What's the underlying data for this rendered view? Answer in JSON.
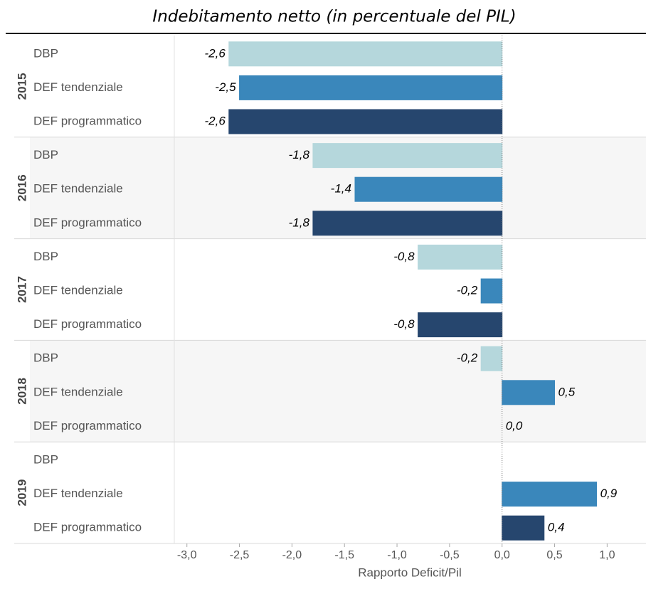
{
  "chart_data": {
    "type": "bar",
    "orientation": "horizontal",
    "title": "Indebitamento netto (in percentuale del PIL)",
    "xlabel": "Rapporto Deficit/Pil",
    "groups": [
      "2015",
      "2016",
      "2017",
      "2018",
      "2019"
    ],
    "series": [
      {
        "name": "DBP",
        "color": "#b5d7dc",
        "values": [
          -2.6,
          -1.8,
          -0.8,
          -0.2,
          null
        ],
        "value_labels": [
          "-2,6",
          "-1,8",
          "-0,8",
          "-0,2",
          null
        ]
      },
      {
        "name": "DEF tendenziale",
        "color": "#3a87bb",
        "values": [
          -2.5,
          -1.4,
          -0.2,
          0.5,
          0.9
        ],
        "value_labels": [
          "-2,5",
          "-1,4",
          "-0,2",
          "0,5",
          "0,9"
        ]
      },
      {
        "name": "DEF programmatico",
        "color": "#26466e",
        "values": [
          -2.6,
          -1.8,
          -0.8,
          0.0,
          0.4
        ],
        "value_labels": [
          "-2,6",
          "-1,8",
          "-0,8",
          "0,0",
          "0,4"
        ]
      }
    ],
    "xlim": [
      -3.12,
      1.37
    ],
    "xticks": [
      {
        "value": -3,
        "label": "-3,0"
      },
      {
        "value": -2.5,
        "label": "-2,5"
      },
      {
        "value": -2,
        "label": "-2,0"
      },
      {
        "value": -1.5,
        "label": "-1,5"
      },
      {
        "value": -1,
        "label": "-1,0"
      },
      {
        "value": -0.5,
        "label": "-0,5"
      },
      {
        "value": 0,
        "label": "0,0"
      },
      {
        "value": 0.5,
        "label": "0,5"
      },
      {
        "value": 1,
        "label": "1,0"
      }
    ]
  }
}
